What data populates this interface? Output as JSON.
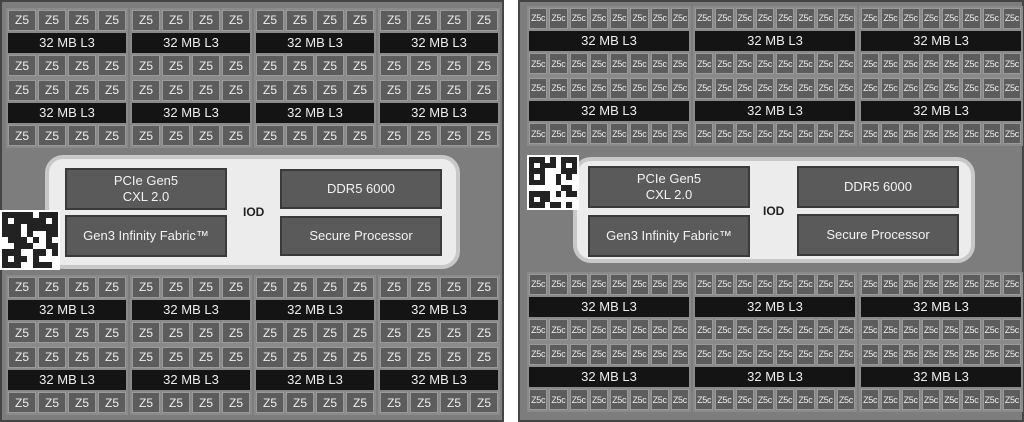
{
  "left": {
    "core_label": "Z5",
    "cache_label": "32 MB L3",
    "ccd_columns": 4,
    "cores_per_row": 4,
    "iod": {
      "label": "IOD",
      "pcie": "PCIe Gen5\nCXL 2.0",
      "fabric": "Gen3 Infinity Fabric™",
      "memory": "DDR5 6000",
      "security": "Secure Processor"
    }
  },
  "right": {
    "core_label": "Z5c",
    "cache_label": "32 MB L3",
    "ccd_columns": 3,
    "cores_per_row": 8,
    "iod": {
      "label": "IOD",
      "pcie": "PCIe Gen5\nCXL 2.0",
      "fabric": "Gen3 Infinity Fabric™",
      "memory": "DDR5 6000",
      "security": "Secure Processor"
    }
  },
  "colors": {
    "panel": "#7d7d7d",
    "core": "#5c5c5c",
    "cache": "#141414",
    "iod": "#ececec"
  }
}
